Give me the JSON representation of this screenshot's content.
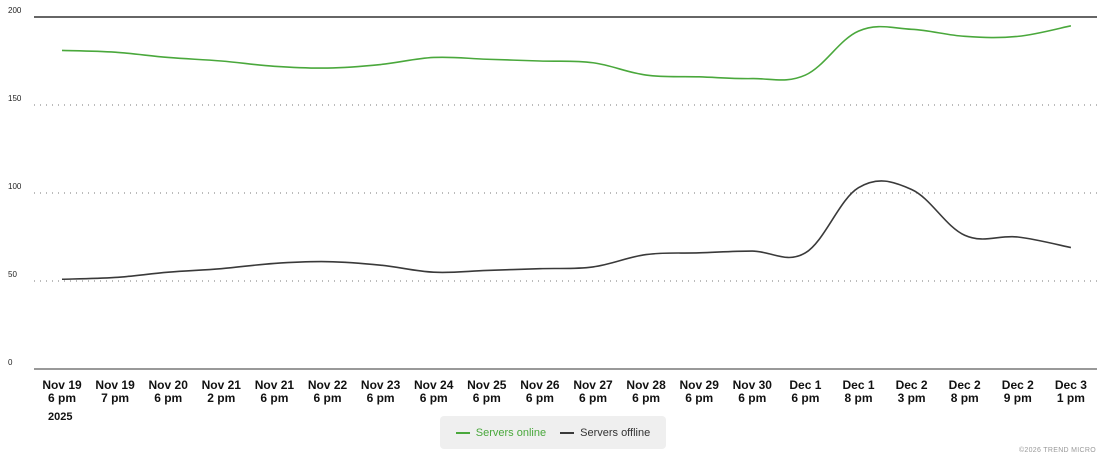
{
  "chart_data": {
    "type": "line",
    "categories": [
      [
        "Nov 19",
        "6 pm"
      ],
      [
        "Nov 19",
        "7 pm"
      ],
      [
        "Nov 20",
        "6 pm"
      ],
      [
        "Nov 21",
        "2 pm"
      ],
      [
        "Nov 21",
        "6 pm"
      ],
      [
        "Nov 22",
        "6 pm"
      ],
      [
        "Nov 23",
        "6 pm"
      ],
      [
        "Nov 24",
        "6 pm"
      ],
      [
        "Nov 25",
        "6 pm"
      ],
      [
        "Nov 26",
        "6 pm"
      ],
      [
        "Nov 27",
        "6 pm"
      ],
      [
        "Nov 28",
        "6 pm"
      ],
      [
        "Nov 29",
        "6 pm"
      ],
      [
        "Nov 30",
        "6 pm"
      ],
      [
        "Dec 1",
        "6 pm"
      ],
      [
        "Dec 1",
        "8 pm"
      ],
      [
        "Dec 2",
        "3 pm"
      ],
      [
        "Dec 2",
        "8 pm"
      ],
      [
        "Dec 2",
        "9 pm"
      ],
      [
        "Dec 3",
        "1 pm"
      ]
    ],
    "year_label": "2025",
    "series": [
      {
        "name": "Servers online",
        "color": "#4aa83c",
        "values": [
          181,
          180,
          177,
          175,
          172,
          171,
          173,
          177,
          176,
          175,
          174,
          167,
          166,
          165,
          167,
          192,
          193,
          189,
          189,
          195
        ]
      },
      {
        "name": "Servers offline",
        "color": "#3a3a3a",
        "values": [
          51,
          52,
          55,
          57,
          60,
          61,
          59,
          55,
          56,
          57,
          58,
          65,
          66,
          67,
          66,
          103,
          102,
          76,
          75,
          69
        ]
      }
    ],
    "ylim": [
      0,
      200
    ],
    "yticks": [
      0,
      50,
      100,
      150,
      200
    ],
    "grid": true,
    "legend_position": "bottom-center"
  },
  "footer": "©2026 TREND MICRO"
}
